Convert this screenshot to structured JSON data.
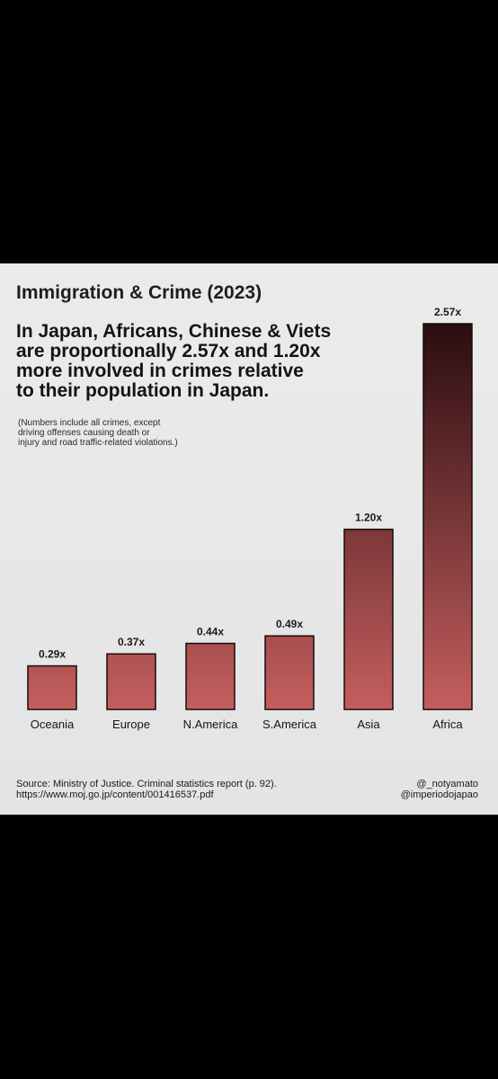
{
  "header": {
    "title": "Immigration & Crime (2023)",
    "subtitle_lines": [
      "In Japan, Africans, Chinese & Viets",
      "are proportionally 2.57x and 1.20x",
      "more involved in crimes relative",
      "to their population in Japan."
    ],
    "note_lines": [
      "(Numbers include all crimes, except",
      "driving offenses causing death or",
      "injury and road traffic-related violations.)"
    ]
  },
  "footer": {
    "source_line": "Source: Ministry of Justice. Criminal statistics report (p. 92).",
    "url_line": "https://www.moj.go.jp/content/001416537.pdf",
    "handle_1": "@_notyamato",
    "handle_2": "@imperiodojapao"
  },
  "colors": {
    "bar_top": "#2a0d10",
    "bar_bottom": "#c45e5e",
    "background": "#e8e8e8"
  },
  "chart_data": {
    "type": "bar",
    "title": "Immigration & Crime (2023)",
    "categories": [
      "Oceania",
      "Europe",
      "N.America",
      "S.America",
      "Asia",
      "Africa"
    ],
    "values": [
      0.29,
      0.37,
      0.44,
      0.49,
      1.2,
      2.57
    ],
    "value_labels": [
      "0.29x",
      "0.37x",
      "0.44x",
      "0.49x",
      "1.20x",
      "2.57x"
    ],
    "xlabel": "",
    "ylabel": "",
    "ylim": [
      0,
      2.57
    ],
    "grid": false,
    "legend": "none"
  }
}
